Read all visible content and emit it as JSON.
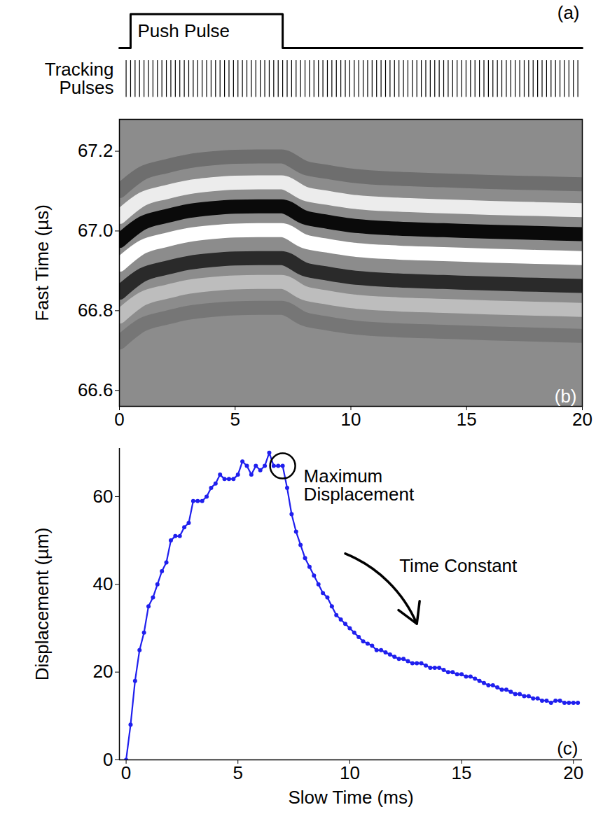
{
  "chart_data": [
    {
      "type": "timing",
      "label": "(a)",
      "xlim": [
        -0.3,
        20.4
      ],
      "push_pulse": {
        "label": "Push Pulse",
        "start": 0.2,
        "end": 7.0
      },
      "tracking_pulses": {
        "label": "Tracking Pulses"
      }
    },
    {
      "type": "line",
      "label": "(b)",
      "ylabel": "Fast Time (µs)",
      "xlim": [
        0,
        20
      ],
      "xticks": [
        0,
        5,
        10,
        15,
        20
      ],
      "ylim": [
        66.56,
        67.28
      ],
      "yticks": [
        66.6,
        66.8,
        {
          "value": 67,
          "label": "67.0"
        },
        67.2
      ],
      "x": [
        0,
        1,
        2,
        3,
        4,
        5,
        6,
        7,
        8,
        9,
        10,
        12,
        14,
        16,
        18,
        20
      ],
      "series": [
        {
          "color": "#6e6e6e",
          "values": [
            67.1,
            67.145,
            67.162,
            67.175,
            67.182,
            67.186,
            67.187,
            67.187,
            67.159,
            67.148,
            67.139,
            67.131,
            67.127,
            67.123,
            67.12,
            67.117
          ]
        },
        {
          "color": "#ececec",
          "values": [
            67.035,
            67.08,
            67.097,
            67.11,
            67.117,
            67.121,
            67.122,
            67.122,
            67.094,
            67.083,
            67.074,
            67.066,
            67.062,
            67.058,
            67.055,
            67.052
          ]
        },
        {
          "color": "#0a0a0a",
          "values": [
            66.975,
            67.02,
            67.037,
            67.05,
            67.057,
            67.061,
            67.062,
            67.062,
            67.034,
            67.023,
            67.014,
            67.006,
            67.002,
            66.998,
            66.995,
            66.992
          ]
        },
        {
          "color": "#ffffff",
          "values": [
            66.915,
            66.96,
            66.977,
            66.99,
            66.997,
            67.001,
            67.002,
            67.002,
            66.974,
            66.963,
            66.954,
            66.946,
            66.942,
            66.938,
            66.935,
            66.932
          ]
        },
        {
          "color": "#2a2a2a",
          "values": [
            66.845,
            66.89,
            66.907,
            66.92,
            66.927,
            66.931,
            66.932,
            66.932,
            66.904,
            66.893,
            66.884,
            66.876,
            66.872,
            66.868,
            66.865,
            66.862
          ]
        },
        {
          "color": "#bdbdbd",
          "values": [
            66.785,
            66.83,
            66.847,
            66.86,
            66.867,
            66.871,
            66.872,
            66.872,
            66.844,
            66.833,
            66.824,
            66.816,
            66.812,
            66.808,
            66.805,
            66.802
          ]
        },
        {
          "color": "#767676",
          "values": [
            66.72,
            66.765,
            66.782,
            66.795,
            66.802,
            66.806,
            66.807,
            66.807,
            66.779,
            66.768,
            66.759,
            66.751,
            66.747,
            66.743,
            66.74,
            66.737
          ]
        }
      ]
    },
    {
      "type": "line",
      "label": "(c)",
      "xlabel": "Slow Time (ms)",
      "ylabel": "Displacement (µm)",
      "color": "#1f1fee",
      "marker": "circle",
      "xlim": [
        -0.3,
        20.4
      ],
      "xticks": [
        0,
        5,
        10,
        15,
        20
      ],
      "ylim": [
        0,
        71
      ],
      "yticks": [
        0,
        20,
        40,
        60
      ],
      "x": [
        0,
        0.2,
        0.4,
        0.6,
        0.8,
        1,
        1.2,
        1.4,
        1.6,
        1.8,
        2,
        2.2,
        2.4,
        2.6,
        2.8,
        3,
        3.2,
        3.4,
        3.6,
        3.8,
        4,
        4.2,
        4.4,
        4.6,
        4.8,
        5,
        5.2,
        5.4,
        5.6,
        5.8,
        6,
        6.2,
        6.4,
        6.6,
        6.8,
        7,
        7.2,
        7.4,
        7.6,
        7.8,
        8,
        8.2,
        8.4,
        8.6,
        8.8,
        9,
        9.2,
        9.4,
        9.6,
        9.8,
        10,
        10.2,
        10.4,
        10.6,
        10.8,
        11,
        11.2,
        11.4,
        11.6,
        11.8,
        12,
        12.2,
        12.4,
        12.6,
        12.8,
        13,
        13.2,
        13.4,
        13.6,
        13.8,
        14,
        14.2,
        14.4,
        14.6,
        14.8,
        15,
        15.2,
        15.4,
        15.6,
        15.8,
        16,
        16.2,
        16.4,
        16.6,
        16.8,
        17,
        17.2,
        17.4,
        17.6,
        17.8,
        18,
        18.2,
        18.4,
        18.6,
        18.8,
        19,
        19.2,
        19.4,
        19.6,
        19.8,
        20,
        20.2
      ],
      "values": [
        0,
        8,
        18,
        25,
        29,
        35,
        37,
        40,
        43,
        45,
        50,
        51,
        51,
        53,
        54,
        59,
        59,
        59,
        60,
        62,
        63,
        65,
        64,
        64,
        64,
        65,
        68,
        67,
        65,
        67,
        66,
        67,
        70,
        67,
        67,
        67,
        62,
        56,
        52,
        49,
        46,
        44,
        42,
        40,
        38,
        37,
        35,
        33,
        32,
        31,
        30,
        29,
        28,
        27,
        26.5,
        26,
        25,
        25,
        24.5,
        24,
        23.5,
        23,
        23,
        22.5,
        22,
        22,
        22,
        21.5,
        21,
        21,
        21,
        20.5,
        20,
        20,
        19.5,
        19.5,
        19,
        19,
        18.5,
        18,
        17.5,
        17,
        17,
        16.5,
        16,
        16,
        15.5,
        15,
        15,
        14.5,
        14.5,
        14,
        14,
        13.5,
        13.5,
        13,
        13.5,
        13.5,
        13,
        13,
        13,
        13
      ],
      "annotations": [
        {
          "text": "Maximum Displacement",
          "x": 7.0,
          "y": 67
        },
        {
          "text": "Time Constant",
          "x": [
            9.8,
            13.0
          ],
          "y": [
            47,
            31
          ]
        }
      ]
    }
  ]
}
